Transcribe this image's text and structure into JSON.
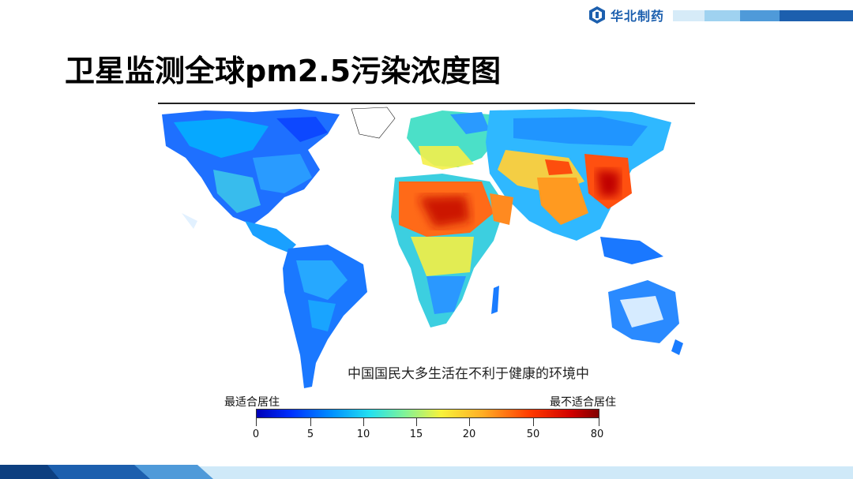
{
  "brand": {
    "name": "华北制药",
    "colors": [
      "#1c5fae",
      "#4f9ad9",
      "#9fd2f0"
    ]
  },
  "slide": {
    "title": "卫星监测全球pm2.5污染浓度图"
  },
  "map": {
    "caption": "中国国民大多生活在不利于健康的环境中",
    "legend": {
      "label_low": "最适合居住",
      "label_high": "最不适合居住",
      "ticks": [
        "0",
        "5",
        "10",
        "15",
        "20",
        "50",
        "80"
      ],
      "colors": [
        "#0000b8",
        "#0090ff",
        "#22e0f0",
        "#7df29a",
        "#f8f23a",
        "#ffae25",
        "#ff3a00",
        "#800000"
      ]
    }
  }
}
